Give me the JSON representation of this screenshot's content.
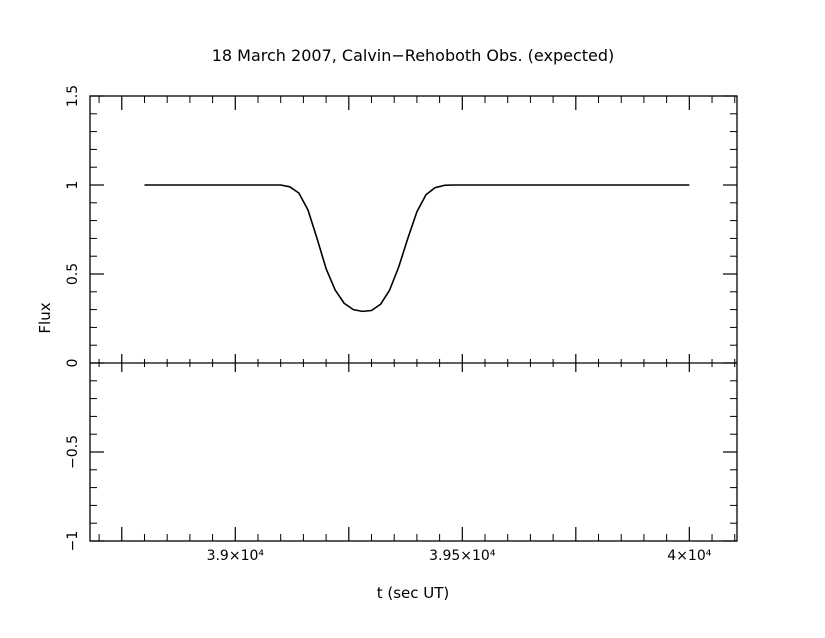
{
  "chart_data": {
    "type": "line",
    "title": "18 March 2007, Calvin−Rehoboth Obs. (expected)",
    "xlabel": "t (sec UT)",
    "ylabel": "Flux",
    "xlim": [
      38680,
      40105
    ],
    "ylim": [
      -1,
      1.5
    ],
    "x_ticks": [
      {
        "value": 39000,
        "label": "3.9×10⁴"
      },
      {
        "value": 39500,
        "label": "3.95×10⁴"
      },
      {
        "value": 40000,
        "label": "4×10⁴"
      }
    ],
    "y_ticks": [
      {
        "value": -1,
        "label": "−1"
      },
      {
        "value": -0.5,
        "label": "−0.5"
      },
      {
        "value": 0,
        "label": "0"
      },
      {
        "value": 0.5,
        "label": "0.5"
      },
      {
        "value": 1,
        "label": "1"
      },
      {
        "value": 1.5,
        "label": "1.5"
      }
    ],
    "zero_line": true,
    "grid": false,
    "series": [
      {
        "x": [
          38800,
          38950,
          39050,
          39100,
          39120,
          39140,
          39160,
          39180,
          39200,
          39220,
          39240,
          39260,
          39280,
          39300,
          39320,
          39340,
          39360,
          39380,
          39400,
          39420,
          39440,
          39460,
          39480,
          39500,
          39550,
          39700,
          39850,
          40000
        ],
        "y": [
          1.0,
          1.0,
          1.0,
          1.0,
          0.99,
          0.955,
          0.86,
          0.7,
          0.53,
          0.41,
          0.335,
          0.3,
          0.29,
          0.295,
          0.33,
          0.41,
          0.54,
          0.7,
          0.85,
          0.945,
          0.985,
          0.998,
          1.0,
          1.0,
          1.0,
          1.0,
          1.0,
          1.0
        ],
        "color": "#000000"
      }
    ]
  }
}
